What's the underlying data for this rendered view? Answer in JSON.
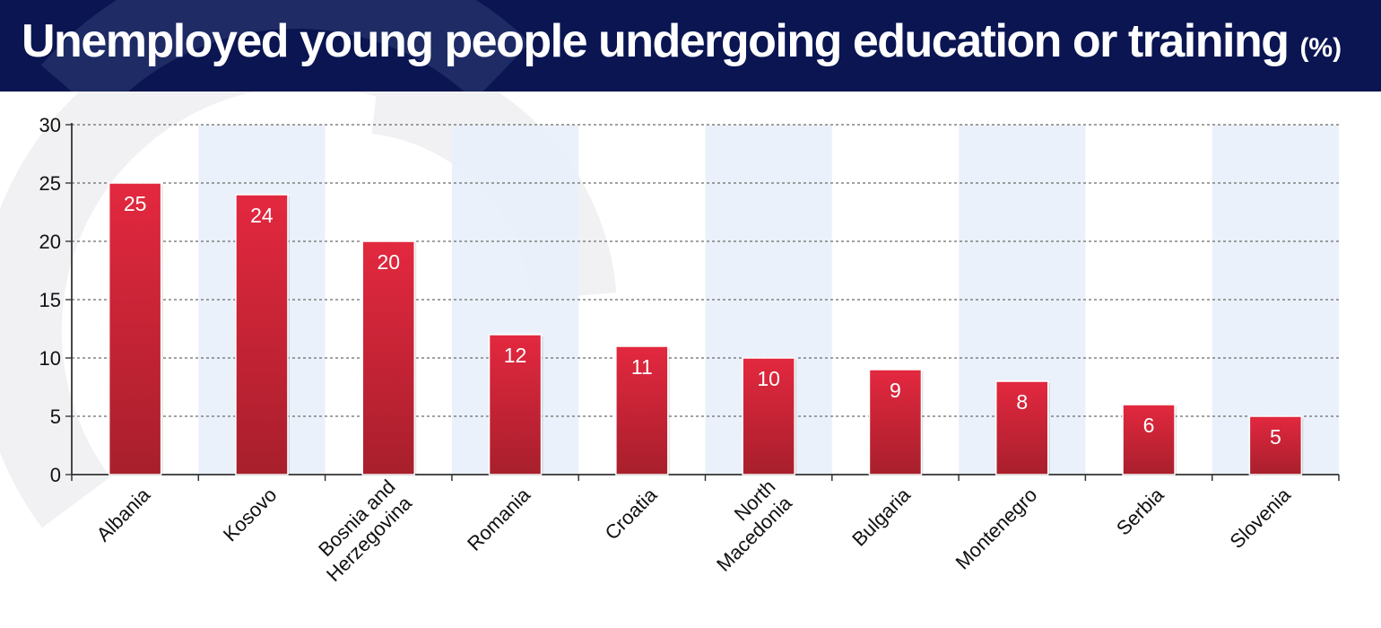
{
  "header": {
    "title": "Unemployed young people undergoing education or training",
    "unit": "(%)"
  },
  "colors": {
    "header_bg": "#0a1552",
    "bar_top": "#e3283f",
    "bar_bottom": "#a81f2c",
    "band": "#e9f0fa",
    "watermark": "#3c4f8f"
  },
  "chart_data": {
    "type": "bar",
    "title": "Unemployed young people undergoing education or training (%)",
    "categories": [
      [
        "Albania"
      ],
      [
        "Kosovo"
      ],
      [
        "Bosnia and",
        "Herzegovina"
      ],
      [
        "Romania"
      ],
      [
        "Croatia"
      ],
      [
        "North",
        "Macedonia"
      ],
      [
        "Bulgaria"
      ],
      [
        "Montenegro"
      ],
      [
        "Serbia"
      ],
      [
        "Slovenia"
      ]
    ],
    "values": [
      25,
      24,
      20,
      12,
      11,
      10,
      9,
      8,
      6,
      5
    ],
    "ylim": [
      0,
      30
    ],
    "yticks": [
      0,
      5,
      10,
      15,
      20,
      25,
      30
    ],
    "grid": true,
    "alternating_bands": true,
    "data_labels": true
  }
}
